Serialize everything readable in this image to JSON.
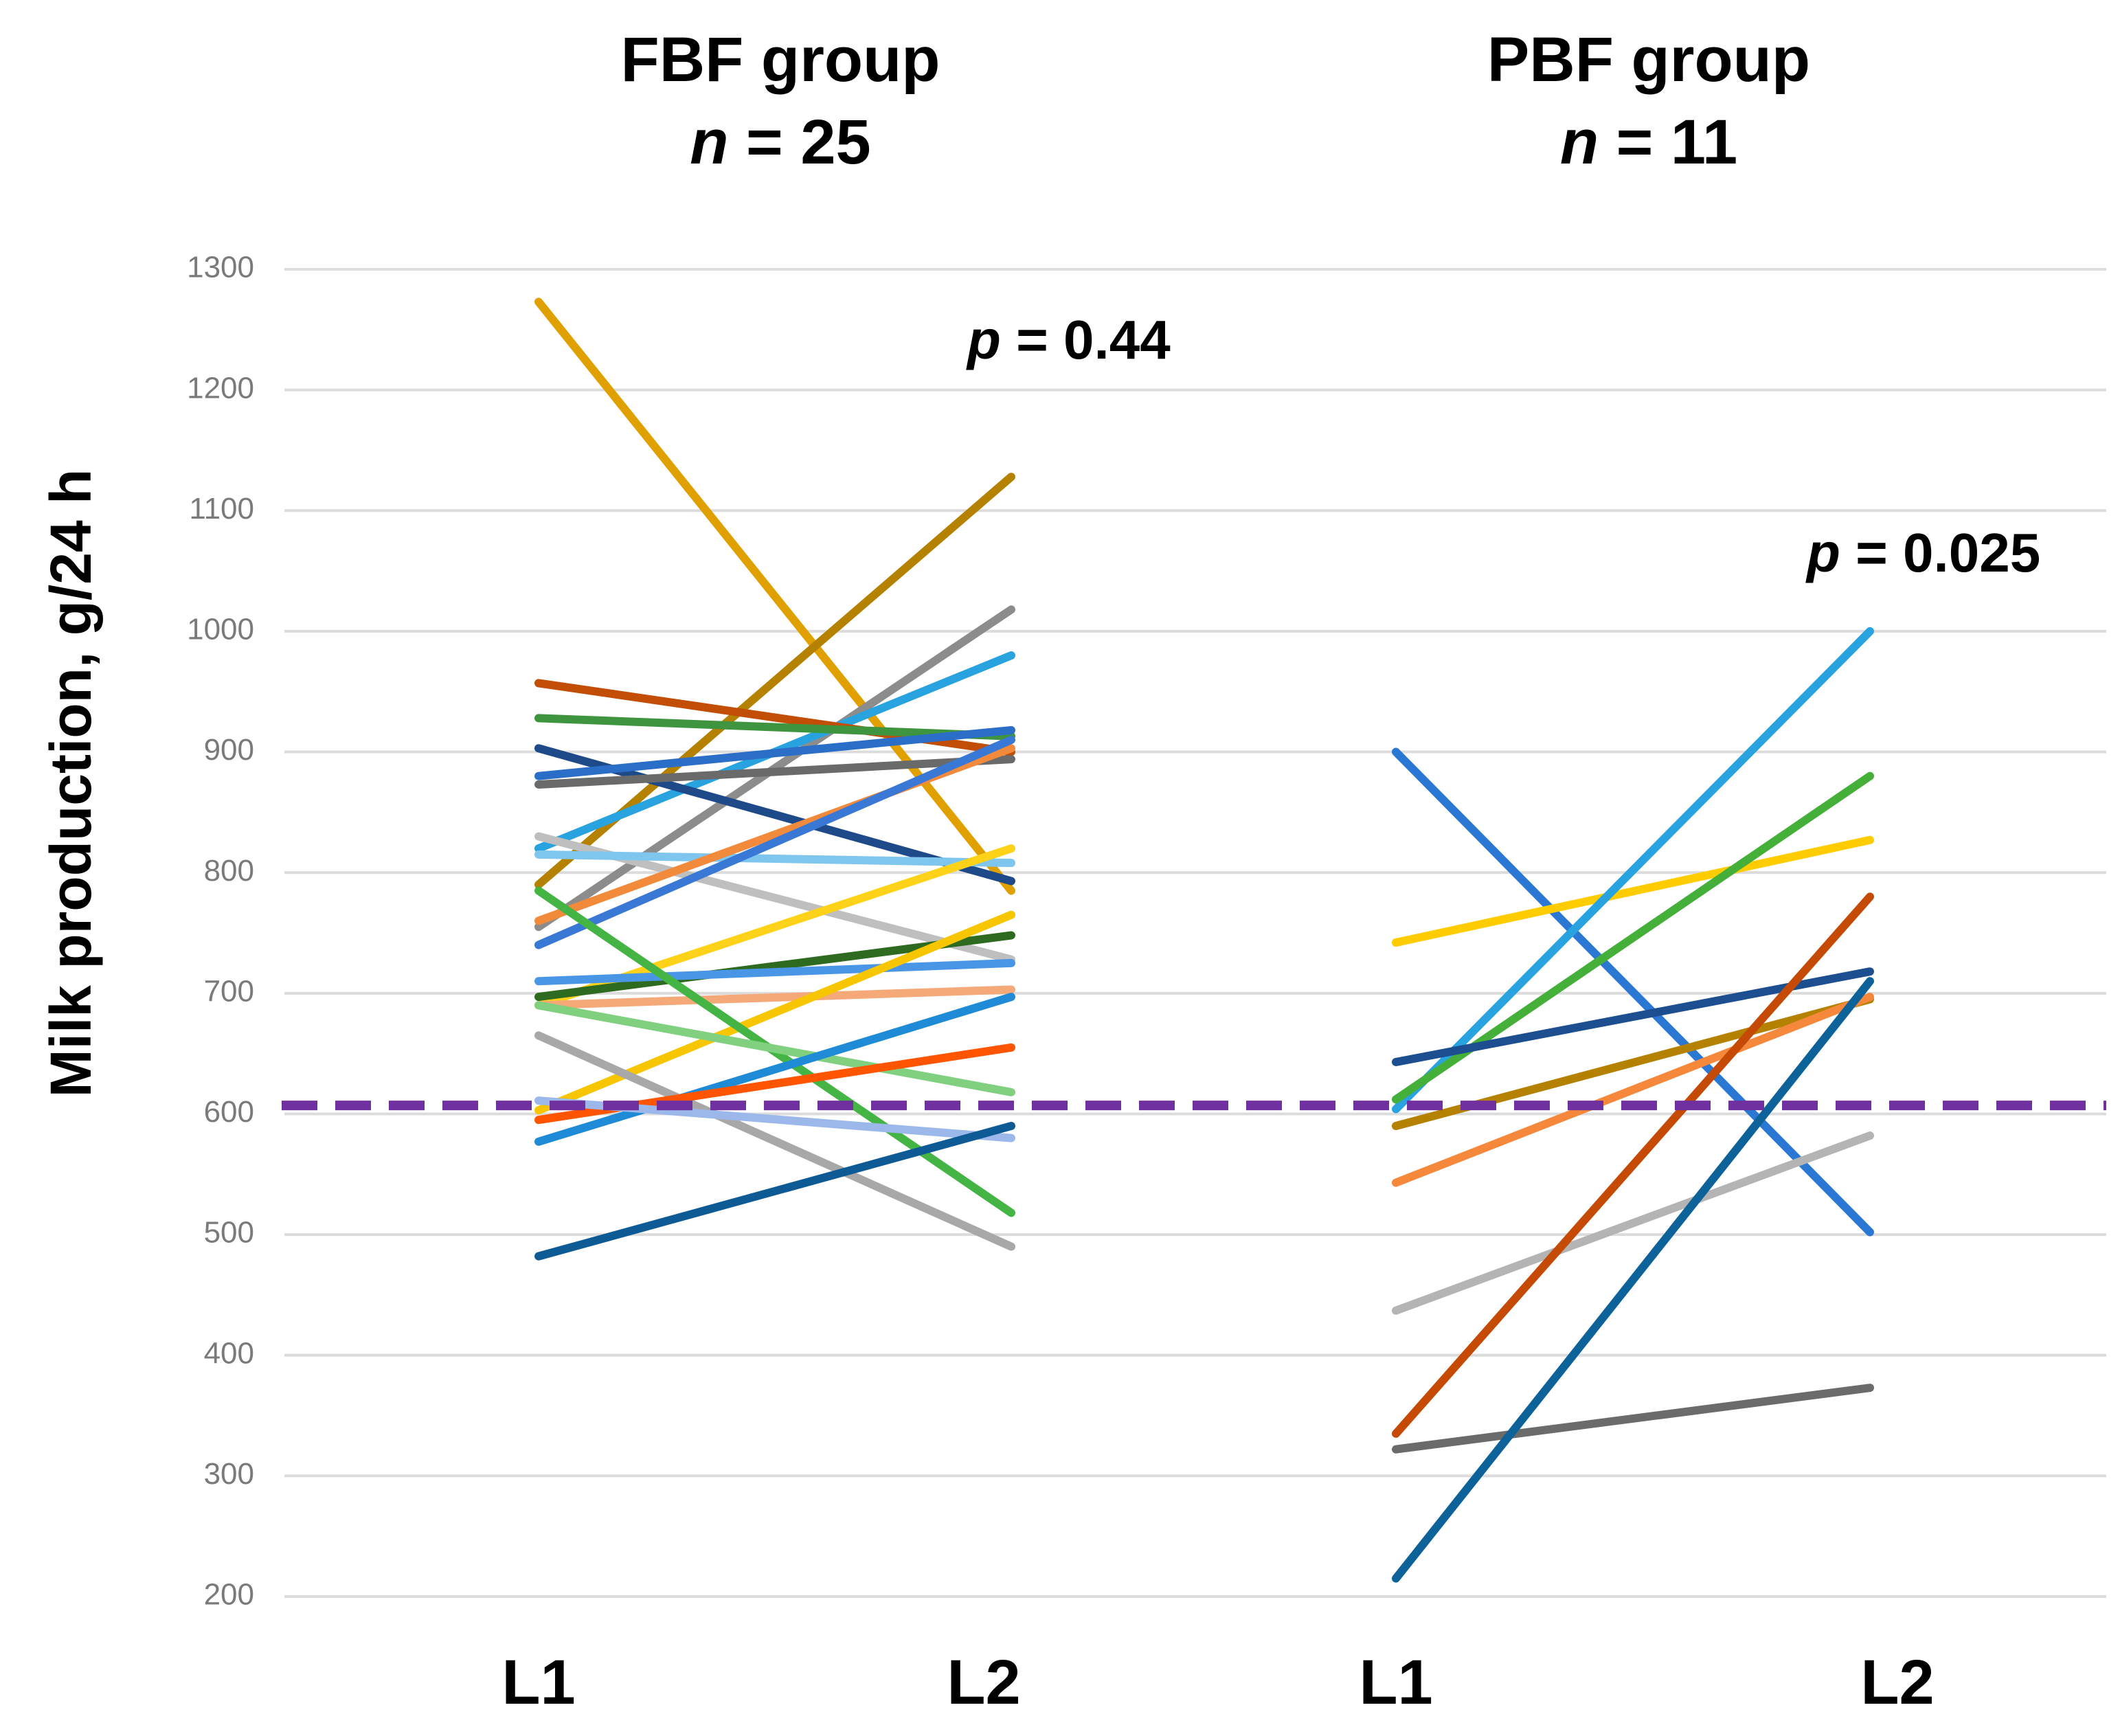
{
  "chart_data": {
    "type": "line",
    "ylabel": "Milk production,  g/24 h",
    "ylim": [
      200,
      1300
    ],
    "yticks": [
      200,
      300,
      400,
      500,
      600,
      700,
      800,
      900,
      1000,
      1100,
      1200,
      1300
    ],
    "grid": true,
    "reference_line": {
      "y": 607,
      "color": "#7030a0",
      "style": "dashed"
    },
    "groups": [
      {
        "title": "FBF group",
        "n_symbol": "n",
        "n_text": " = 25",
        "x_categories": [
          "L1",
          "L2"
        ],
        "p_symbol": "p",
        "p_text": " = 0.44",
        "series": [
          {
            "color": "#e0a000",
            "values": [
              1273,
              785
            ]
          },
          {
            "color": "#b58100",
            "values": [
              790,
              1128
            ]
          },
          {
            "color": "#8c8c8c",
            "values": [
              755,
              1018
            ]
          },
          {
            "color": "#29a3e0",
            "values": [
              820,
              980
            ]
          },
          {
            "color": "#c24d05",
            "values": [
              957,
              900
            ]
          },
          {
            "color": "#3f953f",
            "values": [
              928,
              913
            ]
          },
          {
            "color": "#1e4a8a",
            "values": [
              903,
              793
            ]
          },
          {
            "color": "#2a6ec7",
            "values": [
              880,
              918
            ]
          },
          {
            "color": "#6a6a6a",
            "values": [
              873,
              894
            ]
          },
          {
            "color": "#bfbfbf",
            "values": [
              830,
              728
            ]
          },
          {
            "color": "#7fc6ef",
            "values": [
              815,
              808
            ]
          },
          {
            "color": "#f28a3c",
            "values": [
              760,
              903
            ]
          },
          {
            "color": "#3a78d6",
            "values": [
              740,
              910
            ]
          },
          {
            "color": "#ffd21a",
            "values": [
              690,
              820
            ]
          },
          {
            "color": "#2e6b20",
            "values": [
              697,
              748
            ]
          },
          {
            "color": "#4a96e6",
            "values": [
              710,
              725
            ]
          },
          {
            "color": "#f5a878",
            "values": [
              690,
              703
            ]
          },
          {
            "color": "#f7c600",
            "values": [
              603,
              765
            ]
          },
          {
            "color": "#44b544",
            "values": [
              785,
              518
            ]
          },
          {
            "color": "#80d080",
            "values": [
              690,
              618
            ]
          },
          {
            "color": "#a8a8a8",
            "values": [
              665,
              490
            ]
          },
          {
            "color": "#1f8bd6",
            "values": [
              577,
              697
            ]
          },
          {
            "color": "#ff5500",
            "values": [
              595,
              655
            ]
          },
          {
            "color": "#9cb8ea",
            "values": [
              611,
              580
            ]
          },
          {
            "color": "#0d5a94",
            "values": [
              482,
              590
            ]
          }
        ]
      },
      {
        "title": "PBF group",
        "n_symbol": "n",
        "n_text": " = 11",
        "x_categories": [
          "L1",
          "L2"
        ],
        "p_symbol": "p",
        "p_text": " = 0.025",
        "series": [
          {
            "color": "#2a78d4",
            "values": [
              900,
              502
            ]
          },
          {
            "color": "#ffcc00",
            "values": [
              742,
              827
            ]
          },
          {
            "color": "#29a3e0",
            "values": [
              604,
              1000
            ]
          },
          {
            "color": "#44b03a",
            "values": [
              612,
              880
            ]
          },
          {
            "color": "#1d4e8f",
            "values": [
              643,
              718
            ]
          },
          {
            "color": "#b58100",
            "values": [
              590,
              695
            ]
          },
          {
            "color": "#f5883a",
            "values": [
              543,
              697
            ]
          },
          {
            "color": "#b4b4b4",
            "values": [
              437,
              582
            ]
          },
          {
            "color": "#c44a06",
            "values": [
              335,
              780
            ]
          },
          {
            "color": "#6b6b6b",
            "values": [
              322,
              373
            ]
          },
          {
            "color": "#0d6299",
            "values": [
              215,
              710
            ]
          }
        ]
      }
    ]
  }
}
